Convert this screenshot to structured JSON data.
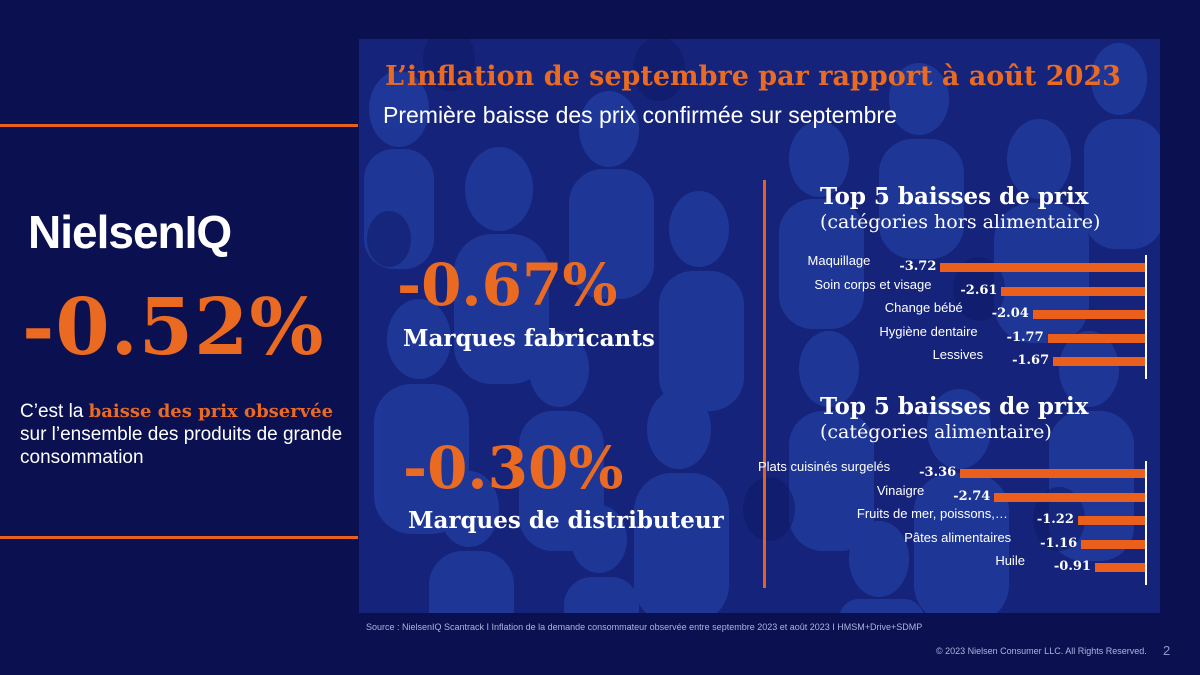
{
  "brand": {
    "logo_text": "NielsenIQ"
  },
  "left": {
    "headline_value": "-0.52%",
    "desc_prefix": "C’est la ",
    "desc_highlight": "baisse des prix observée",
    "desc_suffix": " sur l’ensemble des produits de grande consommation"
  },
  "panel": {
    "title": "L’inflation de septembre par rapport à août 2023",
    "subtitle": "Première baisse des prix confirmée sur septembre",
    "stats": [
      {
        "value": "-0.67%",
        "label": "Marques fabricants"
      },
      {
        "value": "-0.30%",
        "label": "Marques de distributeur"
      }
    ]
  },
  "chart_data": [
    {
      "type": "bar",
      "title": "Top 5 baisses de prix",
      "subtitle": "(catégories hors alimentaire)",
      "categories": [
        "Maquillage",
        "Soin corps et visage",
        "Change bébé",
        "Hygiène dentaire",
        "Lessives"
      ],
      "values": [
        -3.72,
        -2.61,
        -2.04,
        -1.77,
        -1.67
      ],
      "value_labels": [
        "-3.72",
        "-2.61",
        "-2.04",
        "-1.77",
        "-1.67"
      ],
      "orientation": "horizontal"
    },
    {
      "type": "bar",
      "title": "Top 5 baisses de prix",
      "subtitle": "(catégories alimentaire)",
      "categories": [
        "Plats cuisinés surgelés",
        "Vinaigre",
        "Fruits de mer, poissons,…",
        "Pâtes alimentaires",
        "Huile"
      ],
      "values": [
        -3.36,
        -2.74,
        -1.22,
        -1.16,
        -0.91
      ],
      "value_labels": [
        "-3.36",
        "-2.74",
        "-1.22",
        "-1.16",
        "-0.91"
      ],
      "orientation": "horizontal"
    }
  ],
  "footer": {
    "source": "Source : NielsenIQ Scantrack I Inflation de la demande consommateur observée entre septembre 2023 et août 2023 I HMSM+Drive+SDMP",
    "copyright": "© 2023 Nielsen Consumer LLC. All Rights Reserved.",
    "page_number": "2"
  },
  "colors": {
    "background": "#0b1150",
    "panel": "#15247a",
    "accent": "#ea6a22"
  }
}
